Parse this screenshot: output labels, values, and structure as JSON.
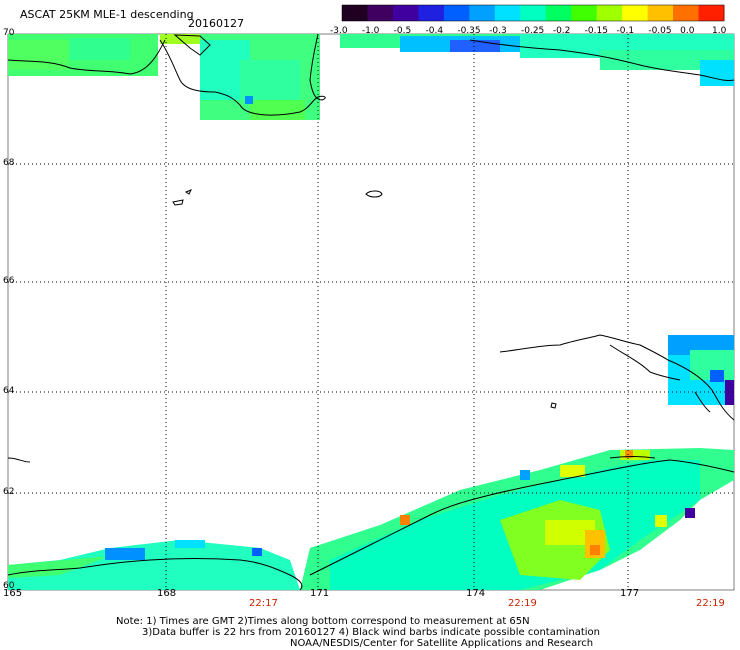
{
  "header": {
    "title": "ASCAT 25KM MLE-1 descending",
    "date": "20160127"
  },
  "colorbar": {
    "ticks": [
      "-3.0",
      "-1.0",
      "-0.5",
      "-0.4",
      "-0.35",
      "-0.3",
      "-0.25",
      "-0.2",
      "-0.15",
      "-0.1",
      "-0.05",
      "0.0",
      "1.0"
    ],
    "colors": [
      "#200020",
      "#400060",
      "#4000a0",
      "#2020e0",
      "#0060ff",
      "#00a0ff",
      "#00e0ff",
      "#00ffc0",
      "#00ff60",
      "#40ff00",
      "#a0ff00",
      "#ffff00",
      "#ffc000",
      "#ff7000",
      "#ff2000"
    ]
  },
  "map": {
    "lat_labels": [
      "70",
      "68",
      "66",
      "64",
      "62",
      "60"
    ],
    "lon_labels": [
      "165",
      "168",
      "171",
      "174",
      "177"
    ],
    "time_labels": [
      "22:17",
      "22:19",
      "22:19"
    ]
  },
  "footer": {
    "line1": "Note: 1) Times are GMT 2)Times along bottom correspond to measurement at 65N",
    "line2": "3)Data buffer is 22 hrs from 20160127 4) Black wind barbs indicate possible contamination",
    "line3": "NOAA/NESDIS/Center for Satellite Applications and Research"
  }
}
